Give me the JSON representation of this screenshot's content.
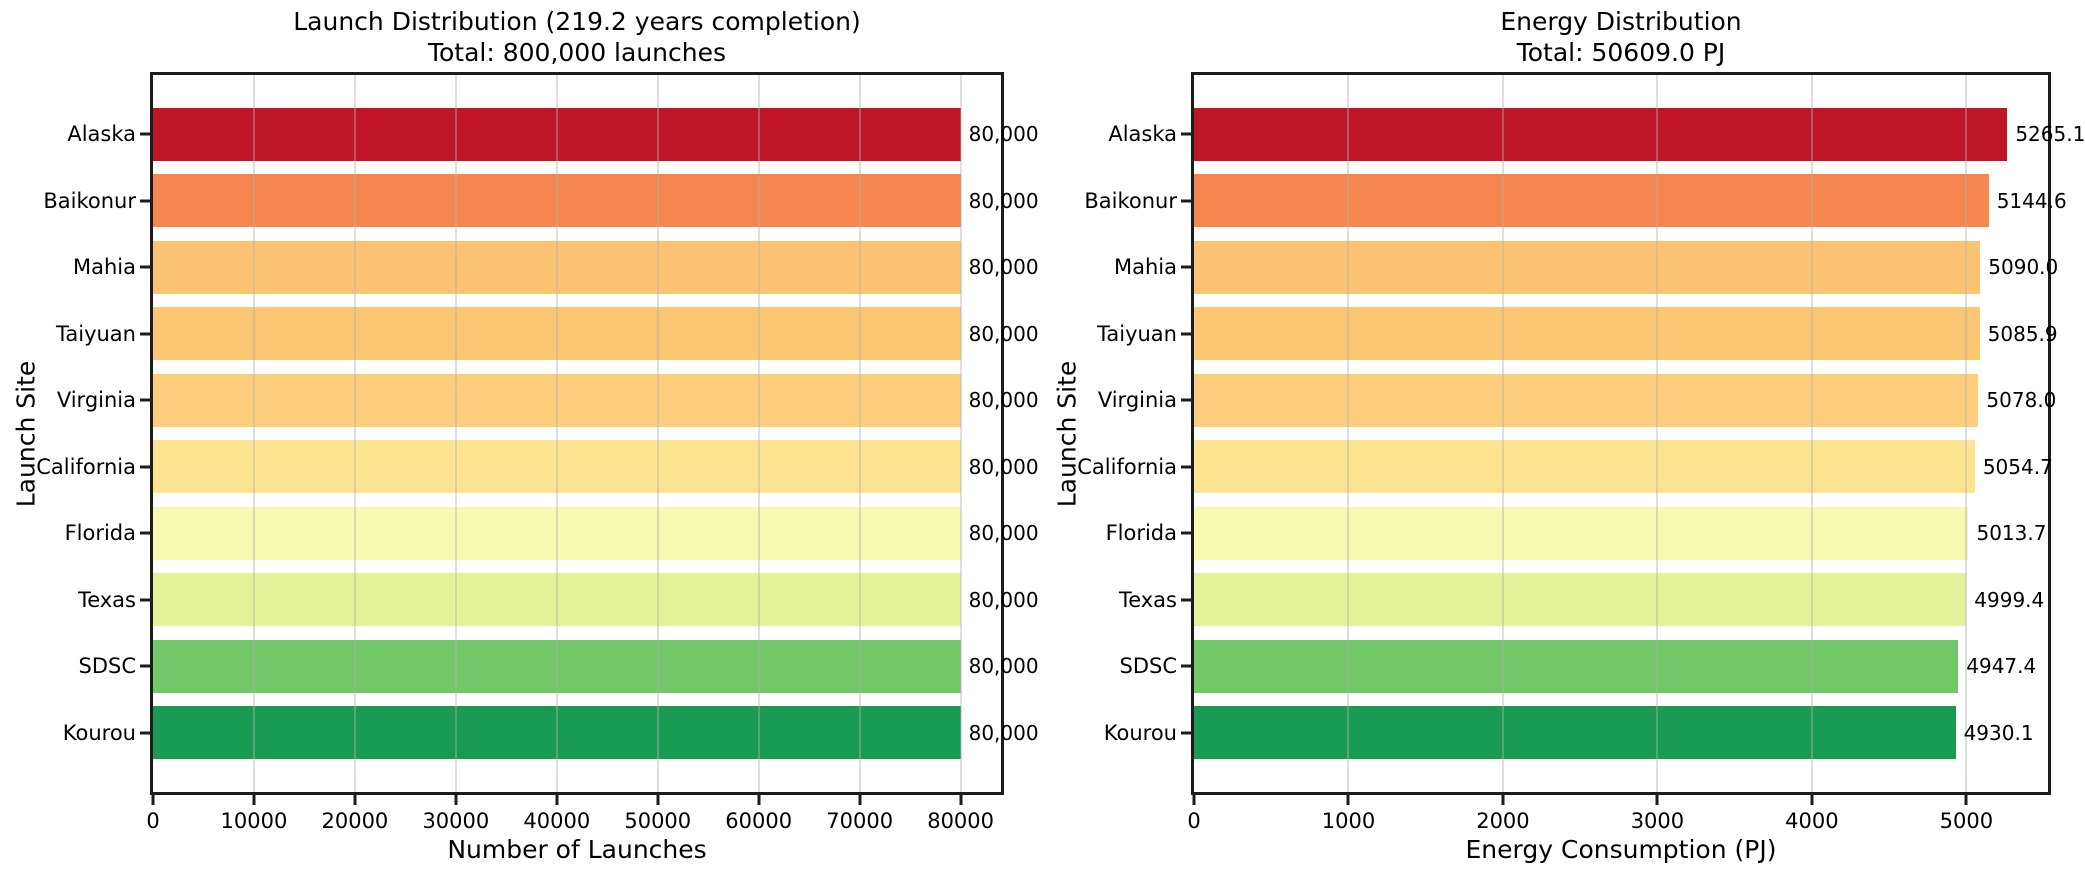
{
  "figure": {
    "background": "#ffffff",
    "text_color": "#000000",
    "spine_color": "#1c1c1c",
    "grid_color": "#b0b0b0"
  },
  "chart_data": [
    {
      "type": "bar",
      "orientation": "horizontal",
      "title": "Launch Distribution (219.2 years completion)",
      "subtitle": "Total: 800,000 launches",
      "xlabel": "Number of Launches",
      "ylabel": "Launch Site",
      "categories": [
        "Alaska",
        "Baikonur",
        "Mahia",
        "Taiyuan",
        "Virginia",
        "California",
        "Florida",
        "Texas",
        "SDSC",
        "Kourou"
      ],
      "values": [
        80000,
        80000,
        80000,
        80000,
        80000,
        80000,
        80000,
        80000,
        80000,
        80000
      ],
      "bar_labels": [
        "80,000",
        "80,000",
        "80,000",
        "80,000",
        "80,000",
        "80,000",
        "80,000",
        "80,000",
        "80,000",
        "80,000"
      ],
      "bar_colors": [
        "#be1627",
        "#f68650",
        "#fcc472",
        "#fdc673",
        "#fdcd7b",
        "#fee491",
        "#f4faaf",
        "#e4f29a",
        "#74c768",
        "#189a53"
      ],
      "xticks": [
        0,
        10000,
        20000,
        30000,
        40000,
        50000,
        60000,
        70000,
        80000
      ],
      "xlim": [
        0,
        84000
      ],
      "grid": true
    },
    {
      "type": "bar",
      "orientation": "horizontal",
      "title": "Energy Distribution",
      "subtitle": "Total: 50609.0 PJ",
      "xlabel": "Energy Consumption (PJ)",
      "ylabel": "Launch Site",
      "categories": [
        "Alaska",
        "Baikonur",
        "Mahia",
        "Taiyuan",
        "Virginia",
        "California",
        "Florida",
        "Texas",
        "SDSC",
        "Kourou"
      ],
      "values": [
        5265.1,
        5144.6,
        5090.0,
        5085.9,
        5078.0,
        5054.7,
        5013.7,
        4999.4,
        4947.4,
        4930.1
      ],
      "bar_labels": [
        "5265.1",
        "5144.6",
        "5090.0",
        "5085.9",
        "5078.0",
        "5054.7",
        "5013.7",
        "4999.4",
        "4947.4",
        "4930.1"
      ],
      "bar_colors": [
        "#be1627",
        "#f68650",
        "#fcc472",
        "#fdc673",
        "#fdcd7b",
        "#fee491",
        "#f4faaf",
        "#e4f29a",
        "#74c768",
        "#189a53"
      ],
      "xticks": [
        0,
        1000,
        2000,
        3000,
        4000,
        5000
      ],
      "xlim": [
        0,
        5528.4
      ],
      "grid": true
    }
  ]
}
